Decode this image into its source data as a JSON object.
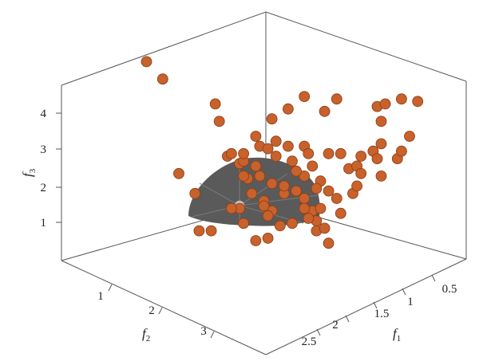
{
  "chart_data": {
    "type": "scatter",
    "axes": {
      "f1": {
        "label": "f",
        "subscript": "1",
        "ticks": [
          "0.5",
          "1",
          "1.5",
          "2",
          "2.5"
        ]
      },
      "f2": {
        "label": "f",
        "subscript": "2",
        "ticks": [
          "1",
          "2",
          "3"
        ]
      },
      "f3": {
        "label": "f",
        "subscript": "3",
        "ticks": [
          "1",
          "2",
          "3",
          "4"
        ]
      }
    },
    "surface": {
      "shape": "spherical Pareto front (first octant)",
      "color": "#5a5a5a"
    },
    "marker_color": "#c8612b",
    "highlight_color": "#cfcfcf",
    "points_note": "approximate projected scatter positions (normalized to plot area)",
    "points": [
      [
        0.21,
        0.8
      ],
      [
        0.25,
        0.73
      ],
      [
        0.33,
        0.27
      ],
      [
        0.34,
        0.12
      ],
      [
        0.37,
        0.12
      ],
      [
        0.29,
        0.35
      ],
      [
        0.38,
        0.63
      ],
      [
        0.44,
        0.39
      ],
      [
        0.45,
        0.4
      ],
      [
        0.41,
        0.42
      ],
      [
        0.45,
        0.43
      ],
      [
        0.49,
        0.46
      ],
      [
        0.48,
        0.5
      ],
      [
        0.51,
        0.45
      ],
      [
        0.53,
        0.48
      ],
      [
        0.53,
        0.42
      ],
      [
        0.56,
        0.46
      ],
      [
        0.6,
        0.46
      ],
      [
        0.61,
        0.43
      ],
      [
        0.57,
        0.4
      ],
      [
        0.62,
        0.38
      ],
      [
        0.6,
        0.34
      ],
      [
        0.64,
        0.32
      ],
      [
        0.66,
        0.28
      ],
      [
        0.63,
        0.29
      ],
      [
        0.46,
        0.33
      ],
      [
        0.49,
        0.34
      ],
      [
        0.52,
        0.31
      ],
      [
        0.55,
        0.27
      ],
      [
        0.55,
        0.3
      ],
      [
        0.58,
        0.28
      ],
      [
        0.6,
        0.25
      ],
      [
        0.5,
        0.24
      ],
      [
        0.52,
        0.2
      ],
      [
        0.47,
        0.27
      ],
      [
        0.45,
        0.34
      ],
      [
        0.48,
        0.38
      ],
      [
        0.42,
        0.43
      ],
      [
        0.39,
        0.56
      ],
      [
        0.66,
        0.43
      ],
      [
        0.69,
        0.43
      ],
      [
        0.71,
        0.37
      ],
      [
        0.73,
        0.38
      ],
      [
        0.74,
        0.42
      ],
      [
        0.77,
        0.44
      ],
      [
        0.78,
        0.41
      ],
      [
        0.79,
        0.34
      ],
      [
        0.79,
        0.47
      ],
      [
        0.83,
        0.41
      ],
      [
        0.84,
        0.44
      ],
      [
        0.86,
        0.5
      ],
      [
        0.79,
        0.56
      ],
      [
        0.78,
        0.62
      ],
      [
        0.8,
        0.63
      ],
      [
        0.84,
        0.65
      ],
      [
        0.88,
        0.64
      ],
      [
        0.68,
        0.65
      ],
      [
        0.6,
        0.66
      ],
      [
        0.52,
        0.57
      ],
      [
        0.56,
        0.61
      ],
      [
        0.65,
        0.6
      ],
      [
        0.63,
        0.12
      ],
      [
        0.62,
        0.2
      ],
      [
        0.64,
        0.21
      ],
      [
        0.68,
        0.25
      ],
      [
        0.69,
        0.19
      ],
      [
        0.72,
        0.27
      ],
      [
        0.74,
        0.35
      ],
      [
        0.51,
        0.18
      ],
      [
        0.57,
        0.15
      ],
      [
        0.6,
        0.21
      ],
      [
        0.73,
        0.3
      ],
      [
        0.66,
        0.07
      ],
      [
        0.63,
        0.16
      ],
      [
        0.65,
        0.13
      ],
      [
        0.61,
        0.17
      ],
      [
        0.58,
        0.36
      ],
      [
        0.44,
        0.21
      ],
      [
        0.42,
        0.21
      ],
      [
        0.5,
        0.22
      ],
      [
        0.54,
        0.14
      ],
      [
        0.51,
        0.09
      ],
      [
        0.48,
        0.08
      ],
      [
        0.45,
        0.15
      ]
    ]
  }
}
